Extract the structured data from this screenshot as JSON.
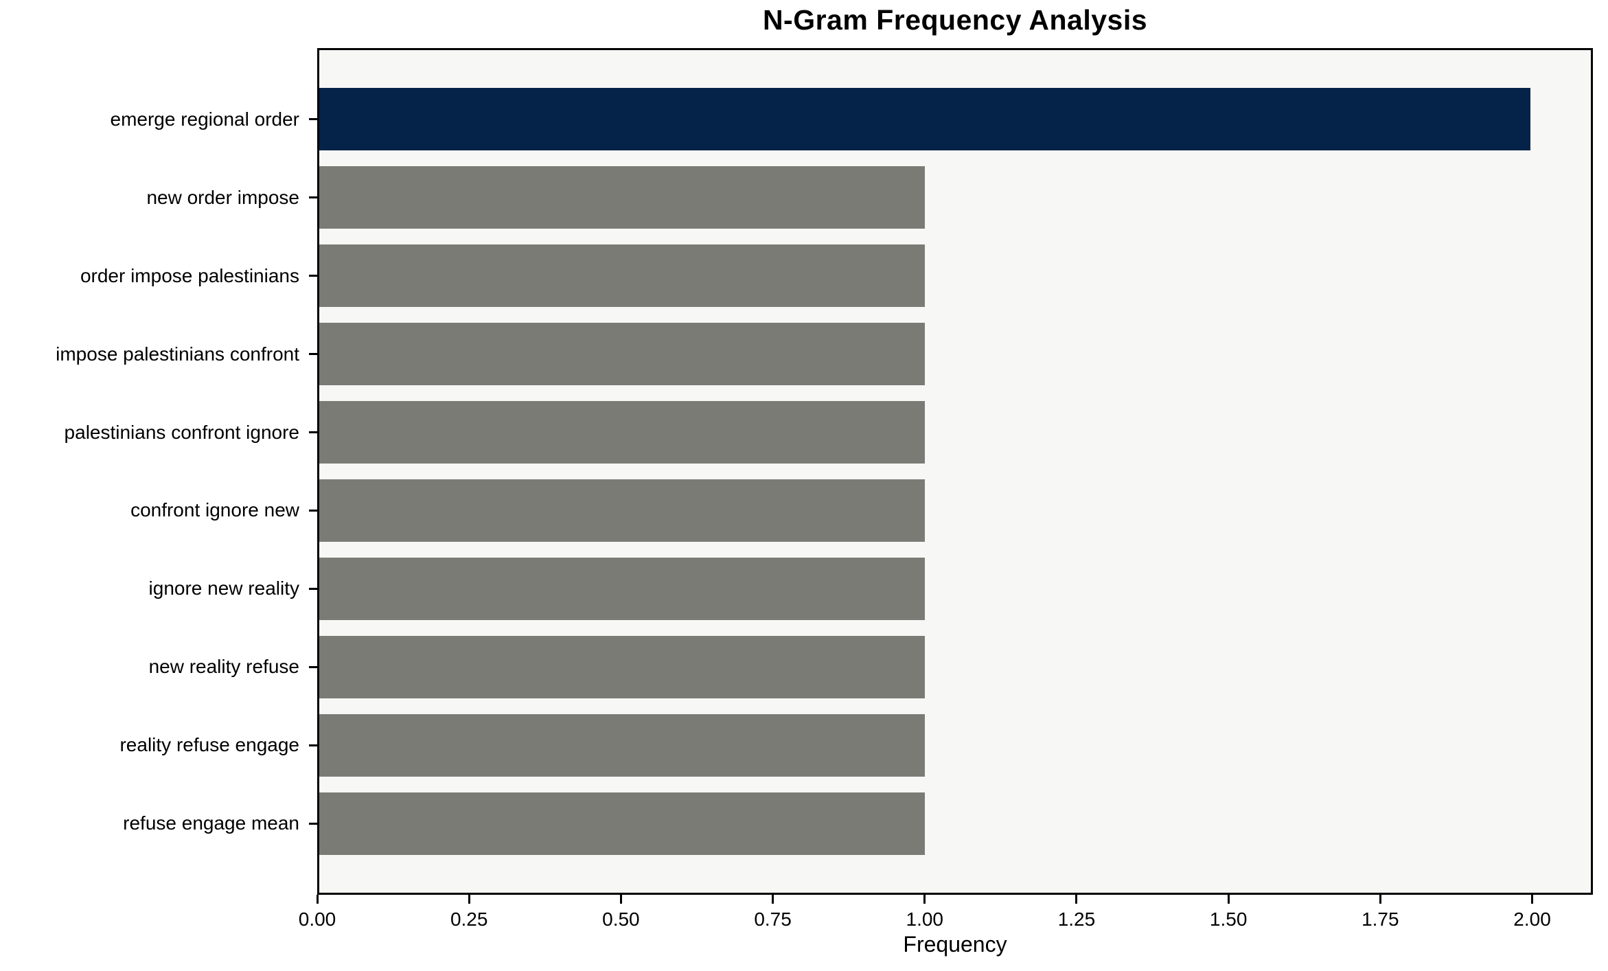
{
  "figure": {
    "background": "#ffffff",
    "plot_background": "#f7f7f6",
    "axis_color": "#000000"
  },
  "chart_data": {
    "type": "bar",
    "orientation": "horizontal",
    "title": "N-Gram Frequency Analysis",
    "xlabel": "Frequency",
    "ylabel": "",
    "categories": [
      "emerge regional order",
      "new order impose",
      "order impose palestinians",
      "impose palestinians confront",
      "palestinians confront ignore",
      "confront ignore new",
      "ignore new reality",
      "new reality refuse",
      "reality refuse engage",
      "refuse engage mean"
    ],
    "values": [
      2,
      1,
      1,
      1,
      1,
      1,
      1,
      1,
      1,
      1
    ],
    "bar_colors": [
      "#052248",
      "#7b7b76",
      "#7b7b76",
      "#7b7b76",
      "#7b7b76",
      "#7b7b76",
      "#7b7b76",
      "#7b7b76",
      "#7b7b76",
      "#7b7b76"
    ],
    "highlight_color": "#052248",
    "default_bar_color": "#7b7b76",
    "xlim": [
      0,
      2.1
    ],
    "x_ticks": [
      {
        "value": 0.0,
        "label": "0.00"
      },
      {
        "value": 0.25,
        "label": "0.25"
      },
      {
        "value": 0.5,
        "label": "0.50"
      },
      {
        "value": 0.75,
        "label": "0.75"
      },
      {
        "value": 1.0,
        "label": "1.00"
      },
      {
        "value": 1.25,
        "label": "1.25"
      },
      {
        "value": 1.5,
        "label": "1.50"
      },
      {
        "value": 1.75,
        "label": "1.75"
      },
      {
        "value": 2.0,
        "label": "2.00"
      }
    ],
    "grid": false,
    "legend": false
  }
}
